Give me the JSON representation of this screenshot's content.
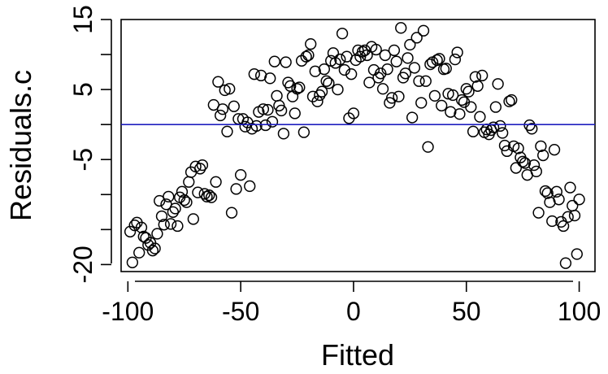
{
  "chart_data": {
    "type": "scatter",
    "title": "",
    "xlabel": "Fitted",
    "ylabel": "Residuals.c",
    "xlim": [
      -103,
      107
    ],
    "ylim": [
      -21,
      15
    ],
    "x_ticks": [
      -100,
      -50,
      0,
      50,
      100
    ],
    "y_ticks": [
      -20,
      -5,
      5,
      15
    ],
    "y_ticks_unlabeled": [
      -15,
      -10,
      0,
      10
    ],
    "grid": false,
    "legend": "none",
    "reference_line": {
      "y": 0,
      "color": "#1f1fbf"
    },
    "marker": "open-circle",
    "points": [
      [
        -99,
        -15.3
      ],
      [
        -98,
        -19.7
      ],
      [
        -97,
        -14.4
      ],
      [
        -96,
        -14.0
      ],
      [
        -95,
        -18.3
      ],
      [
        -94,
        -14.7
      ],
      [
        -93,
        -16.0
      ],
      [
        -92,
        -16.2
      ],
      [
        -91,
        -17.2
      ],
      [
        -90,
        -16.9
      ],
      [
        -89,
        -18.0
      ],
      [
        -88,
        -17.7
      ],
      [
        -87,
        -15.6
      ],
      [
        -86,
        -10.9
      ],
      [
        -85,
        -13.1
      ],
      [
        -84,
        -14.3
      ],
      [
        -83,
        -11.4
      ],
      [
        -82,
        -10.3
      ],
      [
        -81,
        -14.2
      ],
      [
        -80,
        -12.5
      ],
      [
        -79,
        -12.0
      ],
      [
        -78,
        -14.5
      ],
      [
        -77,
        -10.4
      ],
      [
        -76,
        -9.6
      ],
      [
        -75,
        -10.8
      ],
      [
        -74,
        -11.1
      ],
      [
        -73,
        -8.2
      ],
      [
        -72,
        -6.8
      ],
      [
        -71,
        -13.5
      ],
      [
        -70,
        -6.0
      ],
      [
        -69,
        -9.7
      ],
      [
        -68,
        -6.3
      ],
      [
        -67,
        -5.8
      ],
      [
        -66,
        -9.9
      ],
      [
        -65,
        -10.3
      ],
      [
        -64,
        -10.1
      ],
      [
        -63,
        -10.4
      ],
      [
        -62,
        2.8
      ],
      [
        -61,
        -8.2
      ],
      [
        -60,
        6.1
      ],
      [
        -59,
        1.3
      ],
      [
        -58,
        2.2
      ],
      [
        -57,
        4.9
      ],
      [
        -56,
        -1.0
      ],
      [
        -55,
        5.1
      ],
      [
        -54,
        -12.6
      ],
      [
        -53,
        2.6
      ],
      [
        -52,
        -9.2
      ],
      [
        -51,
        0.8
      ],
      [
        -50,
        -7.2
      ],
      [
        -49,
        0.8
      ],
      [
        -48,
        -0.3
      ],
      [
        -47,
        0.3
      ],
      [
        -46,
        -8.8
      ],
      [
        -45,
        -0.6
      ],
      [
        -44,
        7.2
      ],
      [
        -43,
        -0.2
      ],
      [
        -42,
        1.8
      ],
      [
        -41,
        7.0
      ],
      [
        -40,
        2.2
      ],
      [
        -39,
        -0.1
      ],
      [
        -38,
        2.1
      ],
      [
        -37,
        6.6
      ],
      [
        -36,
        0.4
      ],
      [
        -35,
        9.0
      ],
      [
        -34,
        4.1
      ],
      [
        -33,
        2.7
      ],
      [
        -32,
        2.0
      ],
      [
        -31,
        -1.3
      ],
      [
        -30,
        8.9
      ],
      [
        -29,
        6.0
      ],
      [
        -28,
        5.5
      ],
      [
        -27,
        4.0
      ],
      [
        -26,
        1.6
      ],
      [
        -25,
        5.1
      ],
      [
        -24,
        5.3
      ],
      [
        -23,
        9.1
      ],
      [
        -22,
        -1.1
      ],
      [
        -21,
        9.7
      ],
      [
        -20,
        9.9
      ],
      [
        -19,
        11.5
      ],
      [
        -18,
        4.0
      ],
      [
        -17,
        7.6
      ],
      [
        -16,
        3.3
      ],
      [
        -15,
        4.2
      ],
      [
        -14,
        4.7
      ],
      [
        -13,
        7.9
      ],
      [
        -12,
        6.2
      ],
      [
        -11,
        5.9
      ],
      [
        -10,
        9.1
      ],
      [
        -9,
        10.2
      ],
      [
        -8,
        8.8
      ],
      [
        -7,
        5.0
      ],
      [
        -6,
        9.3
      ],
      [
        -5,
        13.0
      ],
      [
        -4,
        7.8
      ],
      [
        -3,
        9.7
      ],
      [
        -2,
        0.9
      ],
      [
        -1,
        7.2
      ],
      [
        0,
        1.6
      ],
      [
        1,
        9.2
      ],
      [
        2,
        10.6
      ],
      [
        3,
        9.7
      ],
      [
        4,
        10.4
      ],
      [
        5,
        10.6
      ],
      [
        6,
        9.9
      ],
      [
        7,
        6.0
      ],
      [
        8,
        11.1
      ],
      [
        9,
        7.8
      ],
      [
        10,
        10.7
      ],
      [
        11,
        6.7
      ],
      [
        12,
        7.3
      ],
      [
        13,
        5.1
      ],
      [
        14,
        9.9
      ],
      [
        15,
        7.9
      ],
      [
        16,
        3.1
      ],
      [
        17,
        3.8
      ],
      [
        18,
        10.6
      ],
      [
        19,
        9.0
      ],
      [
        20,
        4.0
      ],
      [
        21,
        13.8
      ],
      [
        22,
        6.7
      ],
      [
        23,
        7.3
      ],
      [
        24,
        9.5
      ],
      [
        25,
        11.4
      ],
      [
        26,
        1.0
      ],
      [
        27,
        8.1
      ],
      [
        28,
        12.4
      ],
      [
        29,
        6.2
      ],
      [
        30,
        3.1
      ],
      [
        31,
        13.4
      ],
      [
        32,
        6.2
      ],
      [
        33,
        -3.2
      ],
      [
        34,
        8.6
      ],
      [
        35,
        8.9
      ],
      [
        36,
        4.1
      ],
      [
        37,
        9.2
      ],
      [
        38,
        9.4
      ],
      [
        39,
        2.7
      ],
      [
        40,
        7.9
      ],
      [
        41,
        8.0
      ],
      [
        42,
        4.4
      ],
      [
        43,
        1.8
      ],
      [
        44,
        4.2
      ],
      [
        45,
        9.3
      ],
      [
        46,
        10.3
      ],
      [
        47,
        1.5
      ],
      [
        48,
        3.5
      ],
      [
        49,
        3.2
      ],
      [
        50,
        5.1
      ],
      [
        51,
        4.7
      ],
      [
        52,
        2.5
      ],
      [
        53,
        -1.0
      ],
      [
        54,
        6.8
      ],
      [
        55,
        5.5
      ],
      [
        56,
        1.1
      ],
      [
        57,
        7.0
      ],
      [
        58,
        -1.1
      ],
      [
        59,
        -0.7
      ],
      [
        60,
        -1.4
      ],
      [
        61,
        -0.8
      ],
      [
        62,
        -0.4
      ],
      [
        63,
        2.5
      ],
      [
        64,
        5.8
      ],
      [
        65,
        -0.2
      ],
      [
        66,
        -1.2
      ],
      [
        67,
        -3.0
      ],
      [
        68,
        -3.8
      ],
      [
        69,
        3.3
      ],
      [
        70,
        3.5
      ],
      [
        71,
        -3.1
      ],
      [
        72,
        -6.2
      ],
      [
        73,
        -3.4
      ],
      [
        74,
        -4.7
      ],
      [
        75,
        -5.3
      ],
      [
        76,
        -5.5
      ],
      [
        77,
        -7.2
      ],
      [
        78,
        -0.1
      ],
      [
        79,
        -0.6
      ],
      [
        80,
        -5.8
      ],
      [
        81,
        -6.7
      ],
      [
        82,
        -12.6
      ],
      [
        83,
        -3.1
      ],
      [
        84,
        -4.4
      ],
      [
        85,
        -9.5
      ],
      [
        86,
        -9.8
      ],
      [
        87,
        -11.1
      ],
      [
        88,
        -13.8
      ],
      [
        89,
        -3.6
      ],
      [
        90,
        -9.6
      ],
      [
        91,
        -10.7
      ],
      [
        92,
        -13.9
      ],
      [
        93,
        -14.5
      ],
      [
        94,
        -19.8
      ],
      [
        95,
        -13.2
      ],
      [
        96,
        -9.0
      ],
      [
        97,
        -11.6
      ],
      [
        98,
        -13.0
      ],
      [
        99,
        -18.5
      ],
      [
        100,
        -10.7
      ]
    ]
  }
}
